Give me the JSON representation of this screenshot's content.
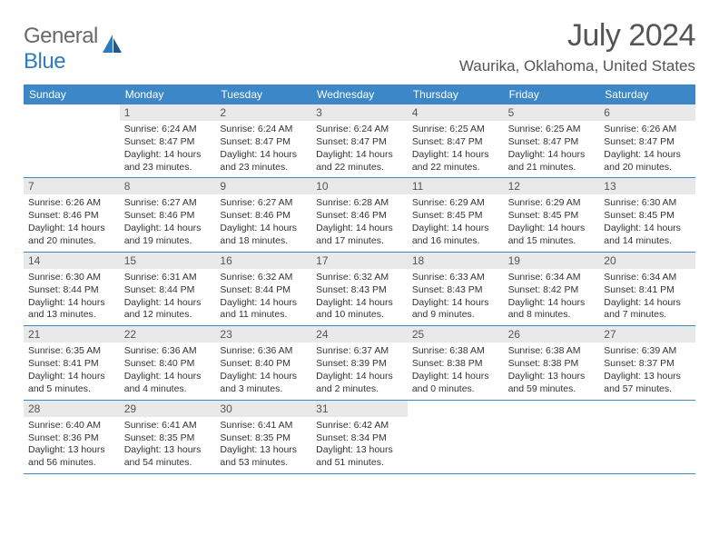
{
  "logo": {
    "general": "General",
    "blue": "Blue"
  },
  "title": "July 2024",
  "location": "Waurika, Oklahoma, United States",
  "colors": {
    "header_bg": "#3b87c8",
    "header_text": "#ffffff",
    "daynum_bg": "#e9e9e9",
    "body_text": "#333333",
    "title_text": "#555555",
    "logo_gray": "#6a6a6a",
    "logo_blue": "#2f7bbf",
    "divider": "#3b87c8"
  },
  "typography": {
    "title_fontsize": 34,
    "location_fontsize": 17,
    "dow_fontsize": 12,
    "daynum_fontsize": 12,
    "body_fontsize": 10.5
  },
  "days_of_week": [
    "Sunday",
    "Monday",
    "Tuesday",
    "Wednesday",
    "Thursday",
    "Friday",
    "Saturday"
  ],
  "weeks": [
    [
      null,
      {
        "n": "1",
        "sunrise": "6:24 AM",
        "sunset": "8:47 PM",
        "daylight": "14 hours and 23 minutes."
      },
      {
        "n": "2",
        "sunrise": "6:24 AM",
        "sunset": "8:47 PM",
        "daylight": "14 hours and 23 minutes."
      },
      {
        "n": "3",
        "sunrise": "6:24 AM",
        "sunset": "8:47 PM",
        "daylight": "14 hours and 22 minutes."
      },
      {
        "n": "4",
        "sunrise": "6:25 AM",
        "sunset": "8:47 PM",
        "daylight": "14 hours and 22 minutes."
      },
      {
        "n": "5",
        "sunrise": "6:25 AM",
        "sunset": "8:47 PM",
        "daylight": "14 hours and 21 minutes."
      },
      {
        "n": "6",
        "sunrise": "6:26 AM",
        "sunset": "8:47 PM",
        "daylight": "14 hours and 20 minutes."
      }
    ],
    [
      {
        "n": "7",
        "sunrise": "6:26 AM",
        "sunset": "8:46 PM",
        "daylight": "14 hours and 20 minutes."
      },
      {
        "n": "8",
        "sunrise": "6:27 AM",
        "sunset": "8:46 PM",
        "daylight": "14 hours and 19 minutes."
      },
      {
        "n": "9",
        "sunrise": "6:27 AM",
        "sunset": "8:46 PM",
        "daylight": "14 hours and 18 minutes."
      },
      {
        "n": "10",
        "sunrise": "6:28 AM",
        "sunset": "8:46 PM",
        "daylight": "14 hours and 17 minutes."
      },
      {
        "n": "11",
        "sunrise": "6:29 AM",
        "sunset": "8:45 PM",
        "daylight": "14 hours and 16 minutes."
      },
      {
        "n": "12",
        "sunrise": "6:29 AM",
        "sunset": "8:45 PM",
        "daylight": "14 hours and 15 minutes."
      },
      {
        "n": "13",
        "sunrise": "6:30 AM",
        "sunset": "8:45 PM",
        "daylight": "14 hours and 14 minutes."
      }
    ],
    [
      {
        "n": "14",
        "sunrise": "6:30 AM",
        "sunset": "8:44 PM",
        "daylight": "14 hours and 13 minutes."
      },
      {
        "n": "15",
        "sunrise": "6:31 AM",
        "sunset": "8:44 PM",
        "daylight": "14 hours and 12 minutes."
      },
      {
        "n": "16",
        "sunrise": "6:32 AM",
        "sunset": "8:44 PM",
        "daylight": "14 hours and 11 minutes."
      },
      {
        "n": "17",
        "sunrise": "6:32 AM",
        "sunset": "8:43 PM",
        "daylight": "14 hours and 10 minutes."
      },
      {
        "n": "18",
        "sunrise": "6:33 AM",
        "sunset": "8:43 PM",
        "daylight": "14 hours and 9 minutes."
      },
      {
        "n": "19",
        "sunrise": "6:34 AM",
        "sunset": "8:42 PM",
        "daylight": "14 hours and 8 minutes."
      },
      {
        "n": "20",
        "sunrise": "6:34 AM",
        "sunset": "8:41 PM",
        "daylight": "14 hours and 7 minutes."
      }
    ],
    [
      {
        "n": "21",
        "sunrise": "6:35 AM",
        "sunset": "8:41 PM",
        "daylight": "14 hours and 5 minutes."
      },
      {
        "n": "22",
        "sunrise": "6:36 AM",
        "sunset": "8:40 PM",
        "daylight": "14 hours and 4 minutes."
      },
      {
        "n": "23",
        "sunrise": "6:36 AM",
        "sunset": "8:40 PM",
        "daylight": "14 hours and 3 minutes."
      },
      {
        "n": "24",
        "sunrise": "6:37 AM",
        "sunset": "8:39 PM",
        "daylight": "14 hours and 2 minutes."
      },
      {
        "n": "25",
        "sunrise": "6:38 AM",
        "sunset": "8:38 PM",
        "daylight": "14 hours and 0 minutes."
      },
      {
        "n": "26",
        "sunrise": "6:38 AM",
        "sunset": "8:38 PM",
        "daylight": "13 hours and 59 minutes."
      },
      {
        "n": "27",
        "sunrise": "6:39 AM",
        "sunset": "8:37 PM",
        "daylight": "13 hours and 57 minutes."
      }
    ],
    [
      {
        "n": "28",
        "sunrise": "6:40 AM",
        "sunset": "8:36 PM",
        "daylight": "13 hours and 56 minutes."
      },
      {
        "n": "29",
        "sunrise": "6:41 AM",
        "sunset": "8:35 PM",
        "daylight": "13 hours and 54 minutes."
      },
      {
        "n": "30",
        "sunrise": "6:41 AM",
        "sunset": "8:35 PM",
        "daylight": "13 hours and 53 minutes."
      },
      {
        "n": "31",
        "sunrise": "6:42 AM",
        "sunset": "8:34 PM",
        "daylight": "13 hours and 51 minutes."
      },
      null,
      null,
      null
    ]
  ],
  "labels": {
    "sunrise_prefix": "Sunrise: ",
    "sunset_prefix": "Sunset: ",
    "daylight_prefix": "Daylight: "
  }
}
